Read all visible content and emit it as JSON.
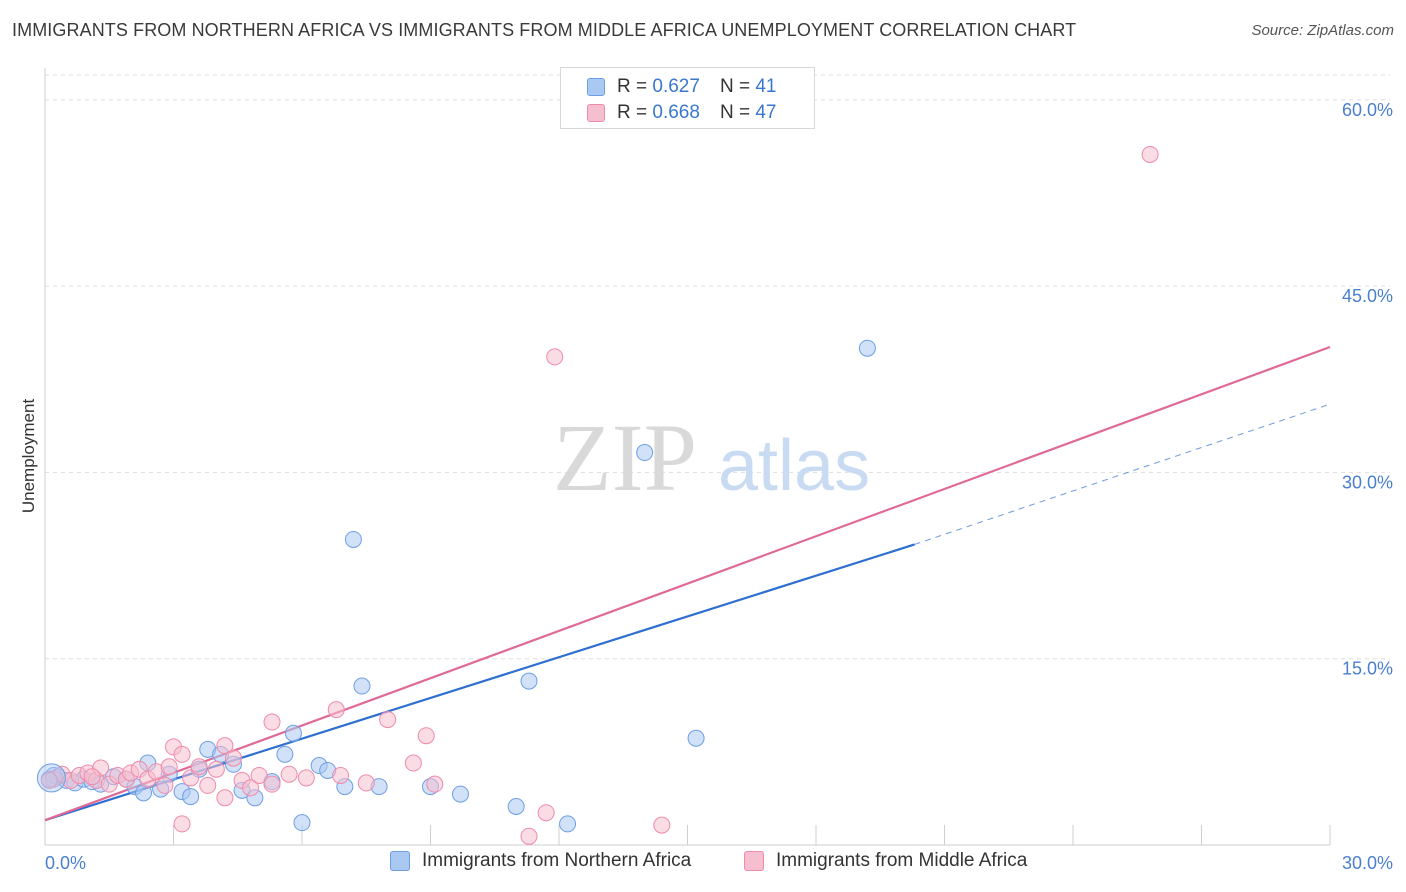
{
  "header": {
    "title": "IMMIGRANTS FROM NORTHERN AFRICA VS IMMIGRANTS FROM MIDDLE AFRICA UNEMPLOYMENT CORRELATION CHART",
    "source": "Source: ZipAtlas.com"
  },
  "watermark": {
    "zip": "ZIP",
    "atlas": "atlas"
  },
  "legend": {
    "r_label": "R =",
    "n_label": "N =",
    "rows": [
      {
        "r": "0.627",
        "n": "41",
        "color": "#6e9ee6"
      },
      {
        "r": "0.668",
        "n": "47",
        "color": "#f08aaa"
      }
    ]
  },
  "colors": {
    "blue_fill": "#a9c8f2",
    "blue_stroke": "#6e9ee6",
    "blue_line": "#2f6fd0",
    "pink_fill": "#f6bfd0",
    "pink_stroke": "#f08aaa",
    "pink_line": "#e06a96",
    "tick_text": "#4a7fd0",
    "grid": "#dddddd"
  },
  "chart_data": {
    "type": "scatter",
    "title": "IMMIGRANTS FROM NORTHERN AFRICA VS IMMIGRANTS FROM MIDDLE AFRICA UNEMPLOYMENT CORRELATION CHART",
    "xlabel": "",
    "ylabel": "Unemployment",
    "xlim": [
      0,
      30
    ],
    "ylim": [
      0,
      62
    ],
    "x_ticks": [
      "0.0%",
      "30.0%"
    ],
    "y_ticks": [
      {
        "value": 15,
        "label": "15.0%"
      },
      {
        "value": 30,
        "label": "30.0%"
      },
      {
        "value": 45,
        "label": "45.0%"
      },
      {
        "value": 60,
        "label": "60.0%"
      }
    ],
    "grid": true,
    "legend_position": "top-center",
    "series": [
      {
        "name": "Immigrants from Northern Africa",
        "r": 0.627,
        "n": 41,
        "trend": {
          "x0": 0,
          "y0": 2.0,
          "x1": 20.3,
          "y1": 24.2,
          "dash_to_x": 30,
          "dash_to_y": 35.5
        },
        "points": [
          [
            0.1,
            5.3
          ],
          [
            0.3,
            5.5
          ],
          [
            0.5,
            5.2
          ],
          [
            0.7,
            5.0
          ],
          [
            0.9,
            5.3
          ],
          [
            1.1,
            5.1
          ],
          [
            1.3,
            4.9
          ],
          [
            1.6,
            5.5
          ],
          [
            1.9,
            5.3
          ],
          [
            2.1,
            4.7
          ],
          [
            2.3,
            4.2
          ],
          [
            2.4,
            6.6
          ],
          [
            2.7,
            4.5
          ],
          [
            2.9,
            5.7
          ],
          [
            3.2,
            4.3
          ],
          [
            3.4,
            3.9
          ],
          [
            3.6,
            6.1
          ],
          [
            3.8,
            7.7
          ],
          [
            4.1,
            7.3
          ],
          [
            4.4,
            6.5
          ],
          [
            4.6,
            4.4
          ],
          [
            4.9,
            3.8
          ],
          [
            5.3,
            5.1
          ],
          [
            5.6,
            7.3
          ],
          [
            5.8,
            9.0
          ],
          [
            6.0,
            1.8
          ],
          [
            6.4,
            6.4
          ],
          [
            6.6,
            6.0
          ],
          [
            7.2,
            24.6
          ],
          [
            7.0,
            4.7
          ],
          [
            7.4,
            12.8
          ],
          [
            7.8,
            4.7
          ],
          [
            9.0,
            4.7
          ],
          [
            9.7,
            4.1
          ],
          [
            11.0,
            3.1
          ],
          [
            11.3,
            13.2
          ],
          [
            12.2,
            1.7
          ],
          [
            14.0,
            31.6
          ],
          [
            15.2,
            8.6
          ],
          [
            19.2,
            40.0
          ],
          [
            0.2,
            5.6
          ]
        ]
      },
      {
        "name": "Immigrants from Middle Africa",
        "r": 0.668,
        "n": 47,
        "trend": {
          "x0": 0,
          "y0": 2.0,
          "x1": 30,
          "y1": 40.1
        },
        "points": [
          [
            0.2,
            5.3
          ],
          [
            0.4,
            5.7
          ],
          [
            0.6,
            5.2
          ],
          [
            0.8,
            5.6
          ],
          [
            1.0,
            5.8
          ],
          [
            1.2,
            5.2
          ],
          [
            1.3,
            6.2
          ],
          [
            1.5,
            4.9
          ],
          [
            1.7,
            5.6
          ],
          [
            1.9,
            5.3
          ],
          [
            2.0,
            5.8
          ],
          [
            2.2,
            6.1
          ],
          [
            2.4,
            5.3
          ],
          [
            2.6,
            5.9
          ],
          [
            2.8,
            4.8
          ],
          [
            2.9,
            6.3
          ],
          [
            3.0,
            7.9
          ],
          [
            3.2,
            7.3
          ],
          [
            3.4,
            5.4
          ],
          [
            3.6,
            6.3
          ],
          [
            3.8,
            4.8
          ],
          [
            4.0,
            6.1
          ],
          [
            4.2,
            8.0
          ],
          [
            4.4,
            7.0
          ],
          [
            4.6,
            5.2
          ],
          [
            4.8,
            4.6
          ],
          [
            5.0,
            5.6
          ],
          [
            5.3,
            9.9
          ],
          [
            5.7,
            5.7
          ],
          [
            6.1,
            5.4
          ],
          [
            6.8,
            10.9
          ],
          [
            7.5,
            5.0
          ],
          [
            8.0,
            10.1
          ],
          [
            8.6,
            6.6
          ],
          [
            8.9,
            8.8
          ],
          [
            9.1,
            4.9
          ],
          [
            11.3,
            0.7
          ],
          [
            11.7,
            2.6
          ],
          [
            11.9,
            39.3
          ],
          [
            14.4,
            1.6
          ],
          [
            25.8,
            55.6
          ],
          [
            3.2,
            1.7
          ],
          [
            4.2,
            3.8
          ],
          [
            5.3,
            4.9
          ],
          [
            6.9,
            5.6
          ],
          [
            1.1,
            5.5
          ],
          [
            0.1,
            5.2
          ]
        ]
      }
    ]
  }
}
